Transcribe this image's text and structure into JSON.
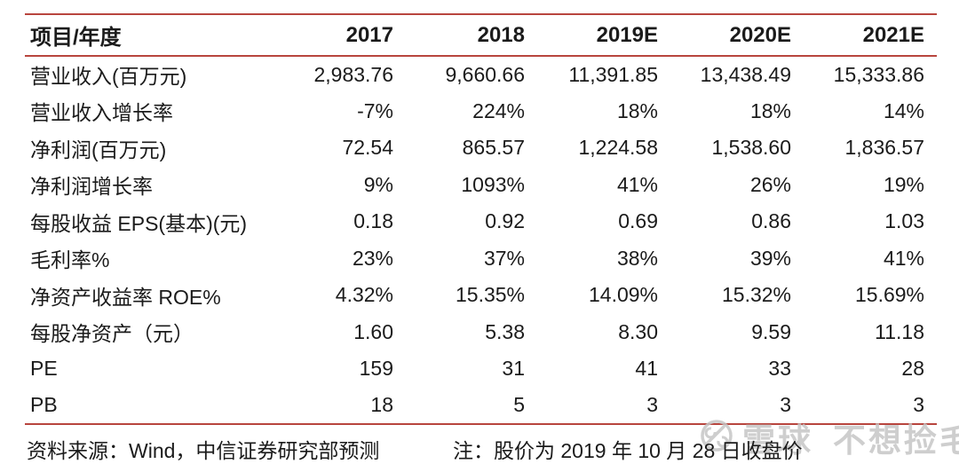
{
  "chart_data": {
    "type": "table",
    "columns": [
      "项目/年度",
      "2017",
      "2018",
      "2019E",
      "2020E",
      "2021E"
    ],
    "rows": [
      {
        "label": "营业收入(百万元)",
        "values": [
          "2,983.76",
          "9,660.66",
          "11,391.85",
          "13,438.49",
          "15,333.86"
        ]
      },
      {
        "label": "营业收入增长率",
        "values": [
          "-7%",
          "224%",
          "18%",
          "18%",
          "14%"
        ]
      },
      {
        "label": "净利润(百万元)",
        "values": [
          "72.54",
          "865.57",
          "1,224.58",
          "1,538.60",
          "1,836.57"
        ]
      },
      {
        "label": "净利润增长率",
        "values": [
          "9%",
          "1093%",
          "41%",
          "26%",
          "19%"
        ]
      },
      {
        "label": "每股收益 EPS(基本)(元)",
        "values": [
          "0.18",
          "0.92",
          "0.69",
          "0.86",
          "1.03"
        ]
      },
      {
        "label": "毛利率%",
        "values": [
          "23%",
          "37%",
          "38%",
          "39%",
          "41%"
        ]
      },
      {
        "label": "净资产收益率 ROE%",
        "values": [
          "4.32%",
          "15.35%",
          "14.09%",
          "15.32%",
          "15.69%"
        ]
      },
      {
        "label": "每股净资产（元）",
        "values": [
          "1.60",
          "5.38",
          "8.30",
          "9.59",
          "11.18"
        ]
      },
      {
        "label": "PE",
        "values": [
          "159",
          "31",
          "41",
          "33",
          "28"
        ]
      },
      {
        "label": "PB",
        "values": [
          "18",
          "5",
          "3",
          "3",
          "3"
        ]
      }
    ],
    "layout_hints": {
      "grid": "horizontal-rules-only",
      "numeric_align": "right"
    }
  },
  "footer": {
    "source": "资料来源：Wind，中信证券研究部预测",
    "note": "注：股价为 2019 年 10 月 28 日收盘价"
  },
  "watermark": {
    "icon": "xueqiu-logo",
    "brand": "雪球",
    "username": "不想捡毛"
  },
  "colors": {
    "accent_line": "#b8453e",
    "text": "#1b1b1b",
    "watermark": "#c6c6c6",
    "background": "#ffffff"
  }
}
